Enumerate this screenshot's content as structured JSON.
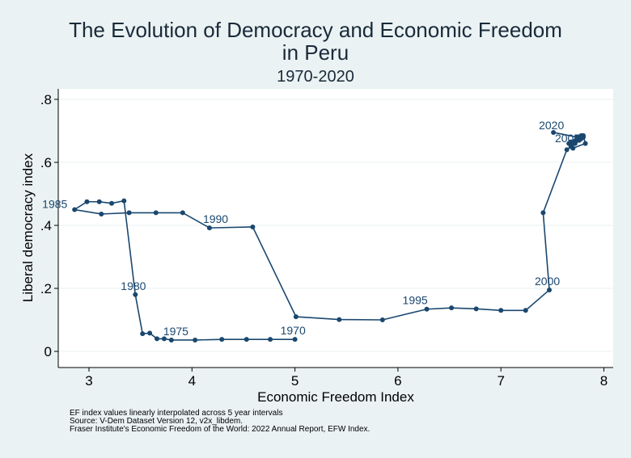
{
  "chart_data": {
    "type": "line",
    "title": "The Evolution of Democracy and Economic Freedom in Peru",
    "title_lines": [
      "The Evolution of Democracy and Economic Freedom",
      "in Peru"
    ],
    "subtitle": "1970-2020",
    "xlabel": "Economic Freedom Index",
    "ylabel": "Liberal democracy index",
    "xlim": [
      2.8,
      8.05
    ],
    "ylim": [
      -0.05,
      0.83
    ],
    "xticks": [
      3,
      4,
      5,
      6,
      7,
      8
    ],
    "yticks": [
      0,
      0.2,
      0.4,
      0.6,
      0.8
    ],
    "ytick_labels": [
      "0",
      ".2",
      ".4",
      ".6",
      ".8"
    ],
    "grid": "horizontal",
    "color": "#1a476f",
    "points": [
      {
        "year": 1970,
        "x": 5.0,
        "y": 0.038
      },
      {
        "year": 1971,
        "x": 4.76,
        "y": 0.038
      },
      {
        "year": 1972,
        "x": 4.53,
        "y": 0.038
      },
      {
        "year": 1973,
        "x": 4.29,
        "y": 0.038
      },
      {
        "year": 1974,
        "x": 4.03,
        "y": 0.036
      },
      {
        "year": 1975,
        "x": 3.8,
        "y": 0.036
      },
      {
        "year": 1976,
        "x": 3.73,
        "y": 0.04
      },
      {
        "year": 1977,
        "x": 3.66,
        "y": 0.04
      },
      {
        "year": 1978,
        "x": 3.59,
        "y": 0.058
      },
      {
        "year": 1979,
        "x": 3.52,
        "y": 0.056
      },
      {
        "year": 1980,
        "x": 3.45,
        "y": 0.18
      },
      {
        "year": 1981,
        "x": 3.34,
        "y": 0.478
      },
      {
        "year": 1982,
        "x": 3.22,
        "y": 0.47
      },
      {
        "year": 1983,
        "x": 3.1,
        "y": 0.475
      },
      {
        "year": 1984,
        "x": 2.98,
        "y": 0.475
      },
      {
        "year": 1985,
        "x": 2.86,
        "y": 0.45
      },
      {
        "year": 1986,
        "x": 3.12,
        "y": 0.436
      },
      {
        "year": 1987,
        "x": 3.39,
        "y": 0.44
      },
      {
        "year": 1988,
        "x": 3.65,
        "y": 0.44
      },
      {
        "year": 1989,
        "x": 3.91,
        "y": 0.44
      },
      {
        "year": 1990,
        "x": 4.17,
        "y": 0.392
      },
      {
        "year": 1991,
        "x": 4.59,
        "y": 0.395
      },
      {
        "year": 1992,
        "x": 5.01,
        "y": 0.11
      },
      {
        "year": 1993,
        "x": 5.43,
        "y": 0.101
      },
      {
        "year": 1994,
        "x": 5.85,
        "y": 0.1
      },
      {
        "year": 1995,
        "x": 6.28,
        "y": 0.134
      },
      {
        "year": 1996,
        "x": 6.52,
        "y": 0.138
      },
      {
        "year": 1997,
        "x": 6.76,
        "y": 0.135
      },
      {
        "year": 1998,
        "x": 7.0,
        "y": 0.13
      },
      {
        "year": 1999,
        "x": 7.24,
        "y": 0.13
      },
      {
        "year": 2000,
        "x": 7.47,
        "y": 0.195
      },
      {
        "year": 2001,
        "x": 7.41,
        "y": 0.44
      },
      {
        "year": 2002,
        "x": 7.64,
        "y": 0.64
      },
      {
        "year": 2003,
        "x": 7.68,
        "y": 0.65
      },
      {
        "year": 2004,
        "x": 7.72,
        "y": 0.66
      },
      {
        "year": 2005,
        "x": 7.76,
        "y": 0.68
      },
      {
        "year": 2006,
        "x": 7.8,
        "y": 0.685
      },
      {
        "year": 2007,
        "x": 7.82,
        "y": 0.66
      },
      {
        "year": 2008,
        "x": 7.7,
        "y": 0.645
      },
      {
        "year": 2009,
        "x": 7.66,
        "y": 0.66
      },
      {
        "year": 2010,
        "x": 7.74,
        "y": 0.67
      },
      {
        "year": 2011,
        "x": 7.78,
        "y": 0.675
      },
      {
        "year": 2012,
        "x": 7.8,
        "y": 0.68
      },
      {
        "year": 2013,
        "x": 7.76,
        "y": 0.67
      },
      {
        "year": 2014,
        "x": 7.72,
        "y": 0.665
      },
      {
        "year": 2015,
        "x": 7.7,
        "y": 0.66
      },
      {
        "year": 2016,
        "x": 7.68,
        "y": 0.665
      },
      {
        "year": 2017,
        "x": 7.74,
        "y": 0.68
      },
      {
        "year": 2018,
        "x": 7.78,
        "y": 0.685
      },
      {
        "year": 2019,
        "x": 7.74,
        "y": 0.68
      },
      {
        "year": 2020,
        "x": 7.51,
        "y": 0.695
      }
    ],
    "labeled_years": [
      1970,
      1975,
      1980,
      1985,
      1990,
      1995,
      2000,
      2005,
      2020
    ],
    "notes": [
      "EF index values linearly interpolated across 5 year intervals",
      "Source: V-Dem Dataset Version 12, v2x_libdem.",
      "Fraser Institute's Economic Freedom of the World: 2022 Annual Report, EFW Index."
    ]
  }
}
